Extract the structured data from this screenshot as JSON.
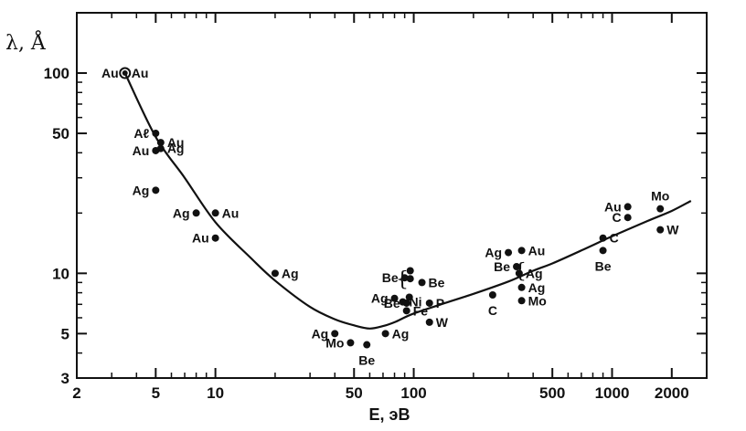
{
  "chart_data": {
    "type": "scatter",
    "title": "",
    "xlabel": "E, эВ",
    "ylabel": "λ, Å",
    "x_scale": "log",
    "y_scale": "log",
    "xlim": [
      2,
      3000
    ],
    "ylim": [
      3,
      200
    ],
    "x_ticks": [
      2,
      5,
      10,
      50,
      100,
      500,
      1000,
      2000
    ],
    "x_tick_labels": [
      "2",
      "5",
      "10",
      "50",
      "100",
      "500",
      "1000",
      "2000"
    ],
    "x_minor_ticks": [
      3,
      4,
      6,
      7,
      8,
      9,
      20,
      30,
      40,
      60,
      70,
      80,
      90,
      200,
      300,
      400,
      600,
      700,
      800,
      900,
      3000
    ],
    "y_ticks": [
      3,
      5,
      10,
      50,
      100
    ],
    "y_tick_labels": [
      "3",
      "5",
      "10",
      "50",
      "100"
    ],
    "y_minor_ticks": [
      4,
      6,
      7,
      8,
      9,
      20,
      30,
      40,
      60,
      70,
      80,
      90,
      200
    ],
    "grid": false,
    "points": [
      {
        "x": 3.5,
        "y": 100,
        "label": "Au",
        "label_side": "left",
        "open": true
      },
      {
        "x": 3.5,
        "y": 100,
        "label": "Au",
        "label_side": "right"
      },
      {
        "x": 5,
        "y": 50,
        "label": "Aℓ",
        "label_side": "left"
      },
      {
        "x": 5.3,
        "y": 45,
        "label": "Au",
        "label_side": "right"
      },
      {
        "x": 5,
        "y": 41,
        "label": "Au",
        "label_side": "left"
      },
      {
        "x": 5.3,
        "y": 42,
        "label": "Ag",
        "label_side": "right"
      },
      {
        "x": 5,
        "y": 26,
        "label": "Ag",
        "label_side": "left"
      },
      {
        "x": 8,
        "y": 20,
        "label": "Ag",
        "label_side": "left"
      },
      {
        "x": 10,
        "y": 20,
        "label": "Au",
        "label_side": "right"
      },
      {
        "x": 10,
        "y": 15,
        "label": "Au",
        "label_side": "left"
      },
      {
        "x": 20,
        "y": 10,
        "label": "Ag",
        "label_side": "right"
      },
      {
        "x": 40,
        "y": 5,
        "label": "Ag",
        "label_side": "left"
      },
      {
        "x": 48,
        "y": 4.5,
        "label": "Mo",
        "label_side": "left"
      },
      {
        "x": 58,
        "y": 4.4,
        "label": "Be",
        "label_side": "below"
      },
      {
        "x": 72,
        "y": 5,
        "label": "Ag",
        "label_side": "right"
      },
      {
        "x": 90,
        "y": 9.5,
        "label": "Be",
        "label_side": "left"
      },
      {
        "x": 96,
        "y": 10.3,
        "label": "",
        "label_side": "none"
      },
      {
        "x": 96,
        "y": 9.4,
        "label": "",
        "label_side": "none"
      },
      {
        "x": 110,
        "y": 9,
        "label": "Be",
        "label_side": "right"
      },
      {
        "x": 80,
        "y": 7.5,
        "label": "Ag",
        "label_side": "left"
      },
      {
        "x": 88,
        "y": 7.2,
        "label": "Ni",
        "label_side": "right"
      },
      {
        "x": 95,
        "y": 7.6,
        "label": "",
        "label_side": "none"
      },
      {
        "x": 92,
        "y": 7.1,
        "label": "Be",
        "label_side": "left"
      },
      {
        "x": 120,
        "y": 7.1,
        "label": "P",
        "label_side": "right"
      },
      {
        "x": 92,
        "y": 6.5,
        "label": "Fe",
        "label_side": "right"
      },
      {
        "x": 120,
        "y": 5.7,
        "label": "W",
        "label_side": "right"
      },
      {
        "x": 250,
        "y": 7.8,
        "label": "C",
        "label_side": "below"
      },
      {
        "x": 300,
        "y": 12.7,
        "label": "Ag",
        "label_side": "left"
      },
      {
        "x": 350,
        "y": 13,
        "label": "Au",
        "label_side": "right"
      },
      {
        "x": 330,
        "y": 10.8,
        "label": "Be",
        "label_side": "left"
      },
      {
        "x": 340,
        "y": 10,
        "label": "Ag",
        "label_side": "right"
      },
      {
        "x": 350,
        "y": 8.5,
        "label": "Ag",
        "label_side": "right"
      },
      {
        "x": 350,
        "y": 7.3,
        "label": "Mo",
        "label_side": "right"
      },
      {
        "x": 900,
        "y": 15,
        "label": "C",
        "label_side": "right"
      },
      {
        "x": 900,
        "y": 13,
        "label": "Be",
        "label_side": "below"
      },
      {
        "x": 1200,
        "y": 21.5,
        "label": "Au",
        "label_side": "left"
      },
      {
        "x": 1200,
        "y": 19,
        "label": "C",
        "label_side": "left"
      },
      {
        "x": 1750,
        "y": 21,
        "label": "Mo",
        "label_side": "above"
      },
      {
        "x": 1750,
        "y": 16.5,
        "label": "W",
        "label_side": "right"
      }
    ],
    "brace_labels": [
      "{",
      "{"
    ],
    "series": [
      {
        "type": "line",
        "x": [
          3.5,
          5,
          7,
          10,
          15,
          20,
          30,
          40,
          50,
          60,
          70,
          80,
          100,
          150,
          200,
          300,
          400,
          500,
          700,
          1000,
          1500,
          2000,
          2500
        ],
        "y": [
          100,
          48,
          30,
          18,
          12,
          9.2,
          6.8,
          5.9,
          5.5,
          5.3,
          5.45,
          5.7,
          6.3,
          7.2,
          7.9,
          9.1,
          10.3,
          11.2,
          13.0,
          15.3,
          18.2,
          20.5,
          23
        ]
      }
    ]
  }
}
